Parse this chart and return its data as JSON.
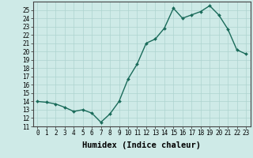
{
  "x": [
    0,
    1,
    2,
    3,
    4,
    5,
    6,
    7,
    8,
    9,
    10,
    11,
    12,
    13,
    14,
    15,
    16,
    17,
    18,
    19,
    20,
    21,
    22,
    23
  ],
  "y": [
    14.0,
    13.9,
    13.7,
    13.3,
    12.8,
    13.0,
    12.6,
    11.5,
    12.5,
    14.0,
    16.7,
    18.5,
    21.0,
    21.5,
    22.8,
    25.2,
    24.0,
    24.4,
    24.8,
    25.5,
    24.4,
    22.7,
    20.2,
    19.7
  ],
  "line_color": "#1a6b5a",
  "marker": "D",
  "marker_size": 2.0,
  "bg_color": "#ceeae7",
  "grid_color": "#aed4d0",
  "xlabel": "Humidex (Indice chaleur)",
  "xlim": [
    -0.5,
    23.5
  ],
  "ylim": [
    11,
    26
  ],
  "yticks": [
    11,
    12,
    13,
    14,
    15,
    16,
    17,
    18,
    19,
    20,
    21,
    22,
    23,
    24,
    25
  ],
  "xticks": [
    0,
    1,
    2,
    3,
    4,
    5,
    6,
    7,
    8,
    9,
    10,
    11,
    12,
    13,
    14,
    15,
    16,
    17,
    18,
    19,
    20,
    21,
    22,
    23
  ],
  "tick_label_fontsize": 5.5,
  "xlabel_fontsize": 7.5,
  "line_width": 1.0
}
